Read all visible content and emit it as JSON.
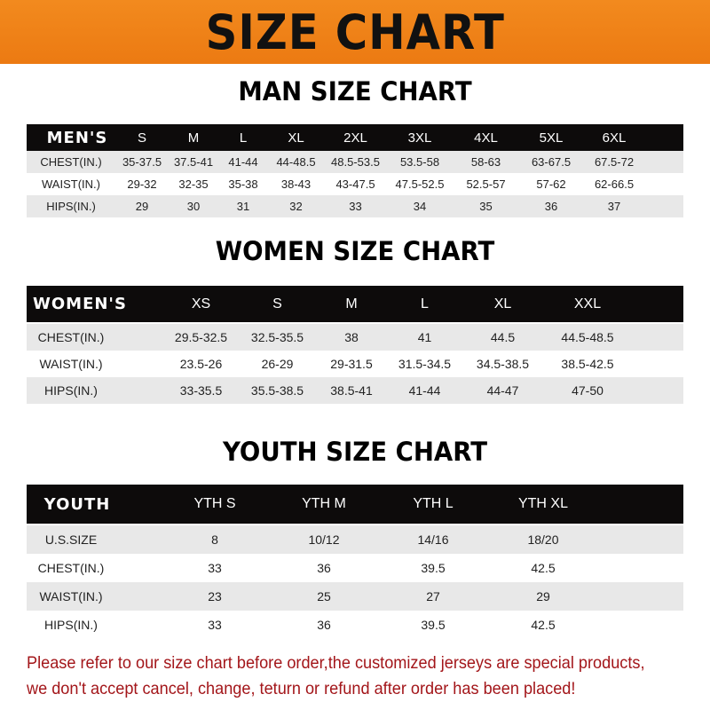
{
  "title": "SIZE CHART",
  "men": {
    "title": "MAN SIZE CHART",
    "header": [
      "MEN'S",
      "S",
      "M",
      "L",
      "XL",
      "2XL",
      "3XL",
      "4XL",
      "5XL",
      "6XL"
    ],
    "rows": [
      [
        "CHEST(IN.)",
        "35-37.5",
        "37.5-41",
        "41-44",
        "44-48.5",
        "48.5-53.5",
        "53.5-58",
        "58-63",
        "63-67.5",
        "67.5-72"
      ],
      [
        "WAIST(IN.)",
        "29-32",
        "32-35",
        "35-38",
        "38-43",
        "43-47.5",
        "47.5-52.5",
        "52.5-57",
        "57-62",
        "62-66.5"
      ],
      [
        "HIPS(IN.)",
        "29",
        "30",
        "31",
        "32",
        "33",
        "34",
        "35",
        "36",
        "37"
      ]
    ]
  },
  "women": {
    "title": "WOMEN SIZE CHART",
    "header": [
      "WOMEN'S",
      "XS",
      "S",
      "M",
      "L",
      "XL",
      "XXL"
    ],
    "rows": [
      [
        "CHEST(IN.)",
        "29.5-32.5",
        "32.5-35.5",
        "38",
        "41",
        "44.5",
        "44.5-48.5"
      ],
      [
        "WAIST(IN.)",
        "23.5-26",
        "26-29",
        "29-31.5",
        "31.5-34.5",
        "34.5-38.5",
        "38.5-42.5"
      ],
      [
        "HIPS(IN.)",
        "33-35.5",
        "35.5-38.5",
        "38.5-41",
        "41-44",
        "44-47",
        "47-50"
      ]
    ]
  },
  "youth": {
    "title": "YOUTH SIZE CHART",
    "header": [
      "YOUTH",
      "YTH S",
      "YTH M",
      "YTH L",
      "YTH XL"
    ],
    "rows": [
      [
        "U.S.SIZE",
        "8",
        "10/12",
        "14/16",
        "18/20"
      ],
      [
        "CHEST(IN.)",
        "33",
        "36",
        "39.5",
        "42.5"
      ],
      [
        "WAIST(IN.)",
        "23",
        "25",
        "27",
        "29"
      ],
      [
        "HIPS(IN.)",
        "33",
        "36",
        "39.5",
        "42.5"
      ]
    ]
  },
  "note": [
    "Please refer to our size chart before order,the customized jerseys are special products,",
    "we don't accept cancel, change, teturn or refund after order has been placed!"
  ],
  "colors": {
    "banner": "#ec7a12",
    "header_row": "#0d0b0b",
    "stripe": "#e8e8e8",
    "note": "#a3161a"
  }
}
